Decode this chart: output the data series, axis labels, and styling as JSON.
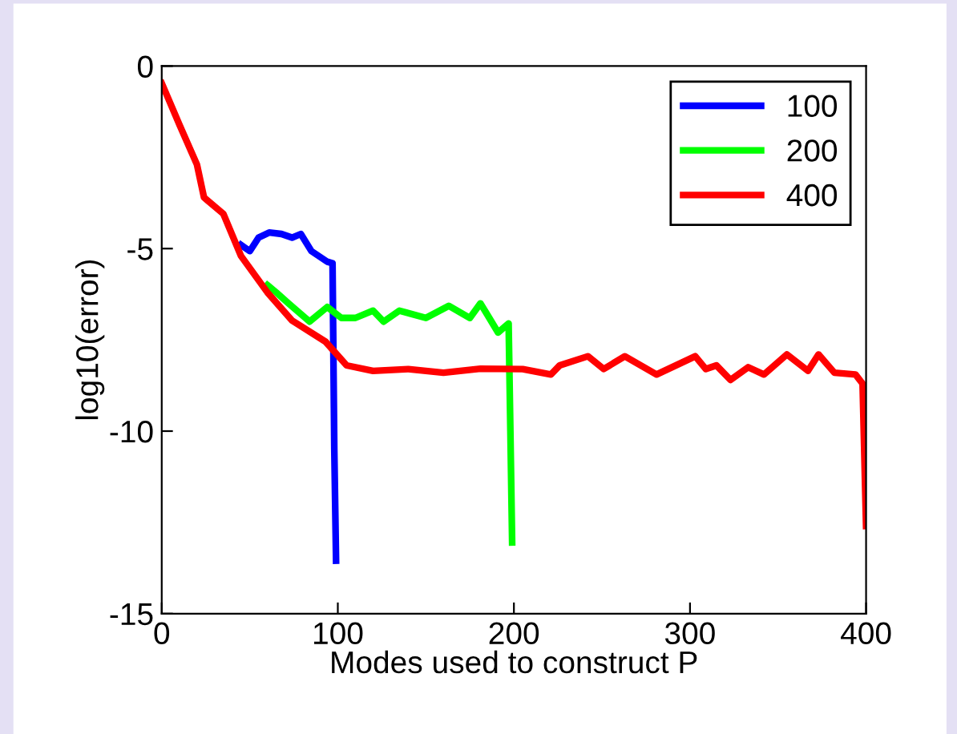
{
  "chart_data": {
    "type": "line",
    "xlabel": "Modes used to construct P",
    "ylabel": "log10(error)",
    "xlim": [
      0,
      400
    ],
    "ylim": [
      -15,
      0
    ],
    "xticks": [
      0,
      100,
      200,
      300,
      400
    ],
    "yticks": [
      0,
      -5,
      -10,
      -15
    ],
    "grid": false,
    "legend": "top right",
    "marker": "none",
    "line_style": "solid",
    "series": [
      {
        "name": "100",
        "color": "#0000ff",
        "x": [
          45,
          50,
          55,
          61,
          68,
          74,
          79,
          85,
          94,
          97,
          98,
          99
        ],
        "values": [
          -4.9,
          -5.07,
          -4.7,
          -4.56,
          -4.6,
          -4.7,
          -4.6,
          -5.07,
          -5.36,
          -5.4,
          -10.5,
          -13.55
        ]
      },
      {
        "name": "200",
        "color": "#00ff00",
        "x": [
          60,
          65,
          72,
          84,
          94,
          102,
          110,
          120,
          126,
          135,
          150,
          163,
          175,
          181,
          186,
          191,
          197,
          198,
          199
        ],
        "values": [
          -6.0,
          -6.2,
          -6.5,
          -7.0,
          -6.6,
          -6.9,
          -6.9,
          -6.7,
          -7.0,
          -6.7,
          -6.9,
          -6.57,
          -6.9,
          -6.5,
          -6.9,
          -7.3,
          -7.05,
          -10.0,
          -13.05
        ]
      },
      {
        "name": "400",
        "color": "#ff0000",
        "x": [
          0,
          10,
          20,
          24,
          35,
          45,
          60,
          74,
          93,
          105,
          120,
          140,
          160,
          181,
          205,
          221,
          226,
          242,
          251,
          263,
          281,
          303,
          309,
          315,
          323,
          333,
          342,
          355,
          367,
          373,
          382,
          394,
          398,
          400
        ],
        "values": [
          -0.47,
          -1.6,
          -2.7,
          -3.6,
          -4.05,
          -5.2,
          -6.2,
          -6.97,
          -7.55,
          -8.2,
          -8.35,
          -8.3,
          -8.4,
          -8.29,
          -8.3,
          -8.45,
          -8.2,
          -7.95,
          -8.3,
          -7.95,
          -8.45,
          -7.95,
          -8.3,
          -8.2,
          -8.6,
          -8.25,
          -8.45,
          -7.9,
          -8.35,
          -7.9,
          -8.4,
          -8.45,
          -8.7,
          -12.6
        ]
      }
    ]
  }
}
